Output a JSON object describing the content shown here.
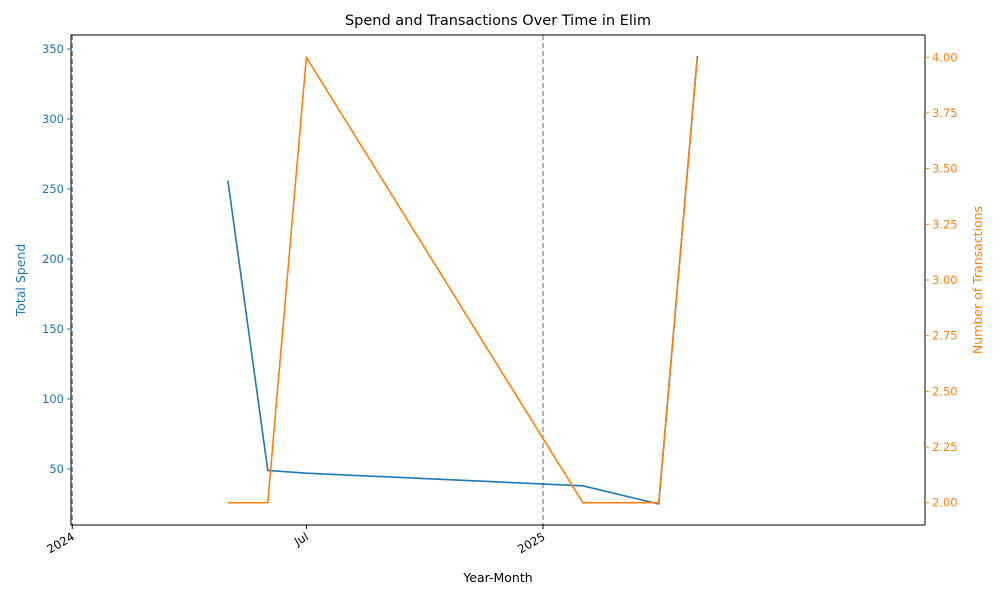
{
  "chart_data": {
    "type": "line",
    "title": "Spend and Transactions Over Time in Elim",
    "xlabel": "Year-Month",
    "xlim": [
      "2023-12-31",
      "2025-10-25"
    ],
    "x_ticks": [
      {
        "date": "2024-01-01",
        "label": "2024"
      },
      {
        "date": "2024-07-01",
        "label": "Jul"
      },
      {
        "date": "2025-01-01",
        "label": "2025"
      }
    ],
    "vlines": [
      "2024-01-01",
      "2025-01-01"
    ],
    "left_axis": {
      "label": "Total Spend",
      "color": "#1f77b4",
      "ylim": [
        10,
        360
      ],
      "ticks": [
        50,
        100,
        150,
        200,
        250,
        300,
        350
      ]
    },
    "right_axis": {
      "label": "Number of Transactions",
      "color": "#ff7f0e",
      "ylim": [
        1.9,
        4.1
      ],
      "ticks": [
        "2.00",
        "2.25",
        "2.50",
        "2.75",
        "3.00",
        "3.25",
        "3.50",
        "3.75",
        "4.00"
      ]
    },
    "x": [
      "2024-05-01",
      "2024-06-01",
      "2024-07-01",
      "2025-02-01",
      "2025-04-01",
      "2025-05-01"
    ],
    "series": [
      {
        "axis": "left",
        "color": "#1f77b4",
        "values": [
          256,
          49,
          47,
          38,
          25,
          345
        ]
      },
      {
        "axis": "right",
        "color": "#ff7f0e",
        "values": [
          2,
          2,
          4,
          2,
          2,
          4
        ]
      }
    ]
  }
}
